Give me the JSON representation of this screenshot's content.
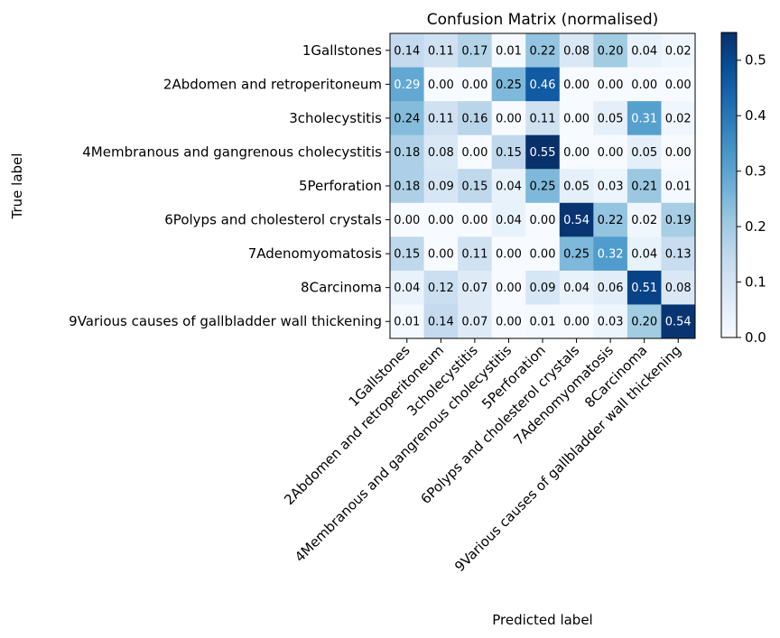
{
  "chart_data": {
    "type": "heatmap",
    "title": "Confusion Matrix (normalised)",
    "xlabel": "Predicted label",
    "ylabel": "True label",
    "categories": [
      "1Gallstones",
      "2Abdomen and retroperitoneum",
      "3cholecystitis",
      "4Membranous and gangrenous cholecystitis",
      "5Perforation",
      "6Polyps and cholesterol crystals",
      "7Adenomyomatosis",
      "8Carcinoma",
      "9Various causes of gallbladder wall thickening"
    ],
    "matrix": [
      [
        0.14,
        0.11,
        0.17,
        0.01,
        0.22,
        0.08,
        0.2,
        0.04,
        0.02
      ],
      [
        0.29,
        0.0,
        0.0,
        0.25,
        0.46,
        0.0,
        0.0,
        0.0,
        0.0
      ],
      [
        0.24,
        0.11,
        0.16,
        0.0,
        0.11,
        0.0,
        0.05,
        0.31,
        0.02
      ],
      [
        0.18,
        0.08,
        0.0,
        0.15,
        0.55,
        0.0,
        0.0,
        0.05,
        0.0
      ],
      [
        0.18,
        0.09,
        0.15,
        0.04,
        0.25,
        0.05,
        0.03,
        0.21,
        0.01
      ],
      [
        0.0,
        0.0,
        0.0,
        0.04,
        0.0,
        0.54,
        0.22,
        0.02,
        0.19
      ],
      [
        0.15,
        0.0,
        0.11,
        0.0,
        0.0,
        0.25,
        0.32,
        0.04,
        0.13
      ],
      [
        0.04,
        0.12,
        0.07,
        0.0,
        0.09,
        0.04,
        0.06,
        0.51,
        0.08
      ],
      [
        0.01,
        0.14,
        0.07,
        0.0,
        0.01,
        0.0,
        0.03,
        0.2,
        0.54
      ]
    ],
    "colormap": "Blues",
    "vmin": 0.0,
    "vmax": 0.55,
    "colorbar_ticks": [
      "0.0",
      "0.1",
      "0.2",
      "0.3",
      "0.4",
      "0.5"
    ],
    "colorbar_tick_values": [
      0.0,
      0.1,
      0.2,
      0.3,
      0.4,
      0.5
    ],
    "value_format": "2 decimals",
    "text_color_threshold": 0.275,
    "grid": false
  }
}
